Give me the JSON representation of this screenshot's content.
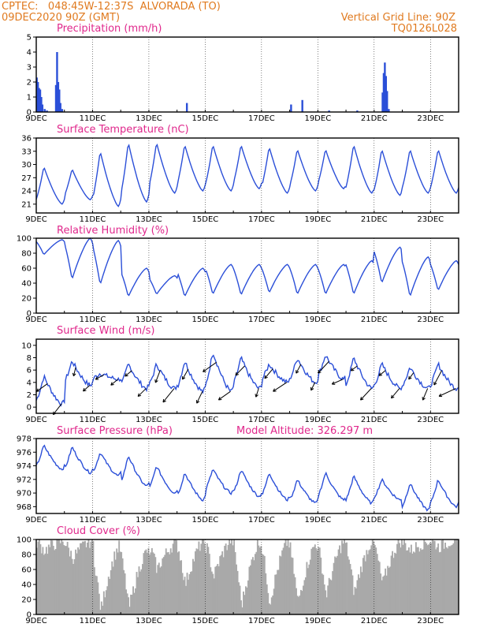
{
  "header": {
    "line1_left": "CPTEC:   048:45W-12:37S  ALVORADA (TO)",
    "line2_left": "09DEC2020 90Z (GMT)",
    "line1_right": "Vertical Grid Line: 90Z",
    "line2_right": "TQ0126L028"
  },
  "colors": {
    "series": "#2b4fd8",
    "cloud": "#a9a9a9",
    "header": "#e07a1f",
    "title": "#e0288c",
    "wind_arrow": "#000000"
  },
  "chart_data": [
    {
      "type": "bar",
      "title": "Precipitation (mm/h)",
      "ylim": [
        0,
        5
      ],
      "yticks": [
        0,
        1,
        2,
        3,
        4,
        5
      ],
      "xlabels": [
        "9DEC",
        "11DEC",
        "13DEC",
        "15DEC",
        "17DEC",
        "19DEC",
        "21DEC",
        "23DEC"
      ],
      "x_range_days": [
        9,
        24
      ],
      "bars": [
        {
          "x": 9.02,
          "value": 2.3
        },
        {
          "x": 9.06,
          "value": 2.0
        },
        {
          "x": 9.1,
          "value": 1.6
        },
        {
          "x": 9.14,
          "value": 1.5
        },
        {
          "x": 9.18,
          "value": 1.0
        },
        {
          "x": 9.22,
          "value": 0.5
        },
        {
          "x": 9.3,
          "value": 0.2
        },
        {
          "x": 9.38,
          "value": 0.1
        },
        {
          "x": 9.7,
          "value": 1.8
        },
        {
          "x": 9.74,
          "value": 4.0
        },
        {
          "x": 9.78,
          "value": 2.0
        },
        {
          "x": 9.82,
          "value": 1.5
        },
        {
          "x": 9.86,
          "value": 0.6
        },
        {
          "x": 9.92,
          "value": 0.2
        },
        {
          "x": 14.35,
          "value": 0.6
        },
        {
          "x": 18.05,
          "value": 0.5
        },
        {
          "x": 18.45,
          "value": 0.8
        },
        {
          "x": 19.4,
          "value": 0.1
        },
        {
          "x": 20.4,
          "value": 0.1
        },
        {
          "x": 21.3,
          "value": 1.3
        },
        {
          "x": 21.34,
          "value": 2.6
        },
        {
          "x": 21.38,
          "value": 3.3
        },
        {
          "x": 21.42,
          "value": 2.4
        },
        {
          "x": 21.46,
          "value": 1.4
        },
        {
          "x": 21.52,
          "value": 0.2
        }
      ]
    },
    {
      "type": "line",
      "title": "Surface Temperature (nC)",
      "ylim": [
        19,
        36
      ],
      "yticks": [
        21,
        24,
        27,
        30,
        33,
        36
      ],
      "xlabels": [
        "9DEC",
        "11DEC",
        "13DEC",
        "15DEC",
        "17DEC",
        "19DEC",
        "21DEC",
        "23DEC"
      ],
      "x_range_days": [
        9,
        24
      ],
      "daily_min": [
        21,
        22,
        20.5,
        21.5,
        23.5,
        24,
        24,
        24.5,
        23.5,
        24,
        24.5,
        23.5,
        23,
        23.5,
        23.5
      ],
      "daily_max": [
        29.5,
        29,
        33,
        35,
        35,
        34.5,
        34.5,
        34.5,
        34,
        33.5,
        33.5,
        34.5,
        33.5,
        33.5,
        33.5
      ]
    },
    {
      "type": "line",
      "title": "Relative Humidity (%)",
      "ylim": [
        0,
        100
      ],
      "yticks": [
        0,
        20,
        40,
        60,
        80,
        100
      ],
      "xlabels": [
        "9DEC",
        "11DEC",
        "13DEC",
        "15DEC",
        "17DEC",
        "19DEC",
        "21DEC",
        "23DEC"
      ],
      "x_range_days": [
        9,
        24
      ],
      "daily_min": [
        78,
        45,
        38,
        22,
        25,
        22,
        25,
        24,
        27,
        25,
        25,
        25,
        40,
        22,
        30
      ],
      "daily_max": [
        98,
        100,
        97,
        60,
        50,
        60,
        65,
        65,
        65,
        65,
        65,
        70,
        88,
        75,
        70
      ]
    },
    {
      "type": "line",
      "title": "Surface Wind (m/s)",
      "ylim": [
        -1,
        11
      ],
      "yticks": [
        0,
        2,
        4,
        6,
        8,
        10
      ],
      "xlabels": [
        "9DEC",
        "11DEC",
        "13DEC",
        "15DEC",
        "17DEC",
        "19DEC",
        "21DEC",
        "23DEC"
      ],
      "x_range_days": [
        9,
        24
      ],
      "daily_min": [
        0.5,
        3.5,
        4.5,
        3,
        3,
        2.5,
        2.5,
        3,
        4,
        4,
        4.5,
        3,
        3,
        3,
        3
      ],
      "daily_max": [
        5,
        7.5,
        5.5,
        7,
        7,
        7.5,
        9,
        8,
        7,
        8,
        8.5,
        8,
        7,
        6.5,
        7
      ]
    },
    {
      "type": "line",
      "title": "Surface Pressure (hPa)",
      "annotation": "Model Altitude: 326.297 m",
      "ylim": [
        967,
        978
      ],
      "yticks": [
        968,
        970,
        972,
        974,
        976,
        978
      ],
      "xlabels": [
        "9DEC",
        "11DEC",
        "13DEC",
        "15DEC",
        "17DEC",
        "19DEC",
        "21DEC",
        "23DEC"
      ],
      "x_range_days": [
        9,
        24
      ],
      "daily_min": [
        973.5,
        973,
        972.5,
        971,
        970,
        969,
        970,
        969.5,
        969,
        968.5,
        969,
        968.5,
        969,
        967.5,
        968
      ],
      "daily_max": [
        977,
        976.8,
        976,
        975.5,
        974,
        973,
        973.5,
        973.5,
        973,
        972,
        973,
        972.5,
        972,
        971.5,
        972
      ]
    },
    {
      "type": "area",
      "title": "Cloud Cover (%)",
      "ylim": [
        0,
        100
      ],
      "yticks": [
        0,
        20,
        40,
        60,
        80,
        100
      ],
      "xlabels": [
        "9DEC",
        "11DEC",
        "13DEC",
        "15DEC",
        "17DEC",
        "19DEC",
        "21DEC",
        "23DEC"
      ],
      "x_range_days": [
        9,
        24
      ],
      "daily_min": [
        85,
        75,
        5,
        8,
        60,
        40,
        50,
        12,
        15,
        15,
        25,
        28,
        40,
        85,
        90
      ],
      "daily_max": [
        98,
        98,
        90,
        85,
        95,
        98,
        100,
        98,
        98,
        95,
        98,
        98,
        98,
        98,
        100
      ]
    }
  ]
}
